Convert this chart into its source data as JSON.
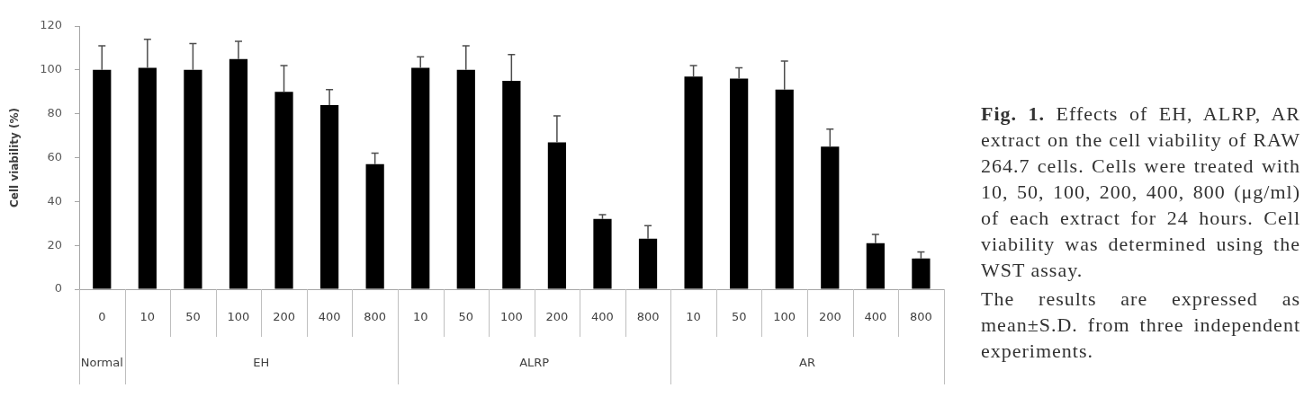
{
  "chart_data": {
    "type": "bar",
    "ylabel": "Cell viability (%)",
    "categories": [
      "0",
      "10",
      "50",
      "100",
      "200",
      "400",
      "800",
      "10",
      "50",
      "100",
      "200",
      "400",
      "800",
      "10",
      "50",
      "100",
      "200",
      "400",
      "800"
    ],
    "values": [
      100,
      101,
      100,
      105,
      90,
      84,
      57,
      101,
      100,
      95,
      67,
      32,
      23,
      97,
      96,
      91,
      65,
      21,
      14
    ],
    "errors": [
      [
        100,
        111
      ],
      [
        101,
        114
      ],
      [
        100,
        112
      ],
      [
        105,
        113
      ],
      [
        90,
        102
      ],
      [
        84,
        91
      ],
      [
        57,
        62
      ],
      [
        101,
        106
      ],
      [
        100,
        111
      ],
      [
        95,
        107
      ],
      [
        67,
        79
      ],
      [
        32,
        34
      ],
      [
        23,
        29
      ],
      [
        97,
        102
      ],
      [
        96,
        101
      ],
      [
        91,
        104
      ],
      [
        65,
        73
      ],
      [
        21,
        25
      ],
      [
        14,
        17
      ]
    ],
    "color": "#000000",
    "ylim": [
      0,
      120
    ],
    "yticks": [
      0,
      20,
      40,
      60,
      80,
      100,
      120
    ],
    "annotations": [
      "Normal",
      "EH",
      "ALRP",
      "AR",
      "Fig. 1. Effects of EH, ALRP, AR extract on the cell viability of RAW 264.7 cells. Cells were treated with 10, 50, 100, 200, 400, 800 (μg/ml) of each extract for 24 hours. Cell viability was determined using the WST assay.",
      "The results are expressed as mean±S.D. from three independent experiments."
    ]
  }
}
